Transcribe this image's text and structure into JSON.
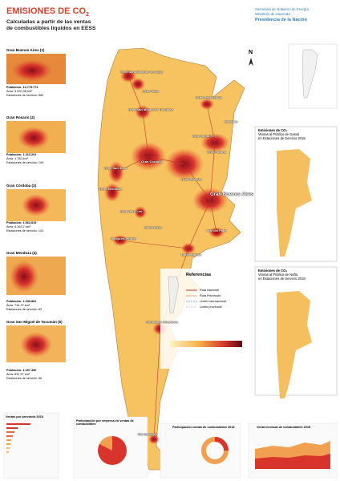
{
  "header": {
    "title": "EMISIONES DE CO",
    "title_sub": "2",
    "subtitle_lines": [
      "Calculadas a partir de las ventas",
      "de combustibles líquidos en EESS"
    ]
  },
  "logo": {
    "lines": [
      "Secretaría de Gobierno de Energía",
      "Ministerio de Hacienda",
      "Presidencia de la Nación"
    ]
  },
  "compass": "N",
  "insets": [
    {
      "title": "Gran Buenos Aires (1)",
      "stats": [
        "Población: 14.775.774",
        "Área: 9.520,38 km²",
        "Estaciones de servicio: 983"
      ]
    },
    {
      "title": "Gran Rosario (2)",
      "stats": [
        "Población: 1.313.201",
        "Área: 1.783 km²",
        "Estaciones de servicio: 109"
      ]
    },
    {
      "title": "Gran Córdoba (3)",
      "stats": [
        "Población: 1.562.819",
        "Área: 4.393,7 km²",
        "Estaciones de servicio: 141"
      ]
    },
    {
      "title": "Gran Mendoza (4)",
      "stats": [
        "Población: 1.039.881",
        "Área: 734,37 km²",
        "Estaciones de servicio: 83"
      ]
    },
    {
      "title": "Gran San Miguel de Tucumán (5)",
      "stats": [
        "Población: 1.097.356",
        "Área: 832,37 km²",
        "Estaciones de servicio: 66"
      ]
    }
  ],
  "map_labels": [
    "Gran San Salvador de Jujuy",
    "Gran Salta",
    "Gran San Miguel de Tucumán",
    "Gran Resistencia",
    "Posadas",
    "Gran Santa Fe",
    "Gran Paraná",
    "Gran Córdoba",
    "Gran Rosario",
    "Gran San Juan",
    "Gran Mendoza",
    "Gran San Luis",
    "Gran Buenos Aires",
    "Mar del Plata",
    "Santa Rosa",
    "Bahía Blanca",
    "Neuquén-Plottier",
    "Comodoro Rivadavia",
    "Río Gallegos"
  ],
  "side_panels": [
    {
      "title_lines": [
        "Emisiones de CO₂",
        "Ventas al Público de Gasoil",
        "en Estaciones de Servicio 2018"
      ]
    },
    {
      "title_lines": [
        "Emisiones de CO₂",
        "Ventas al Público de Nafta",
        "en Estaciones de Servicio 2018"
      ]
    }
  ],
  "legend": {
    "title": "Referencias",
    "items": [
      "Ruta Nacional",
      "Ruta Provincial",
      "Límite internacional",
      "Límite provincial"
    ]
  },
  "charts": [
    "Ventas por provincia 2018",
    "Participación por empresa en ventas de combustibles",
    "Participación ventas de combustibles 2018",
    "Venta mensual de combustibles 2018"
  ]
}
